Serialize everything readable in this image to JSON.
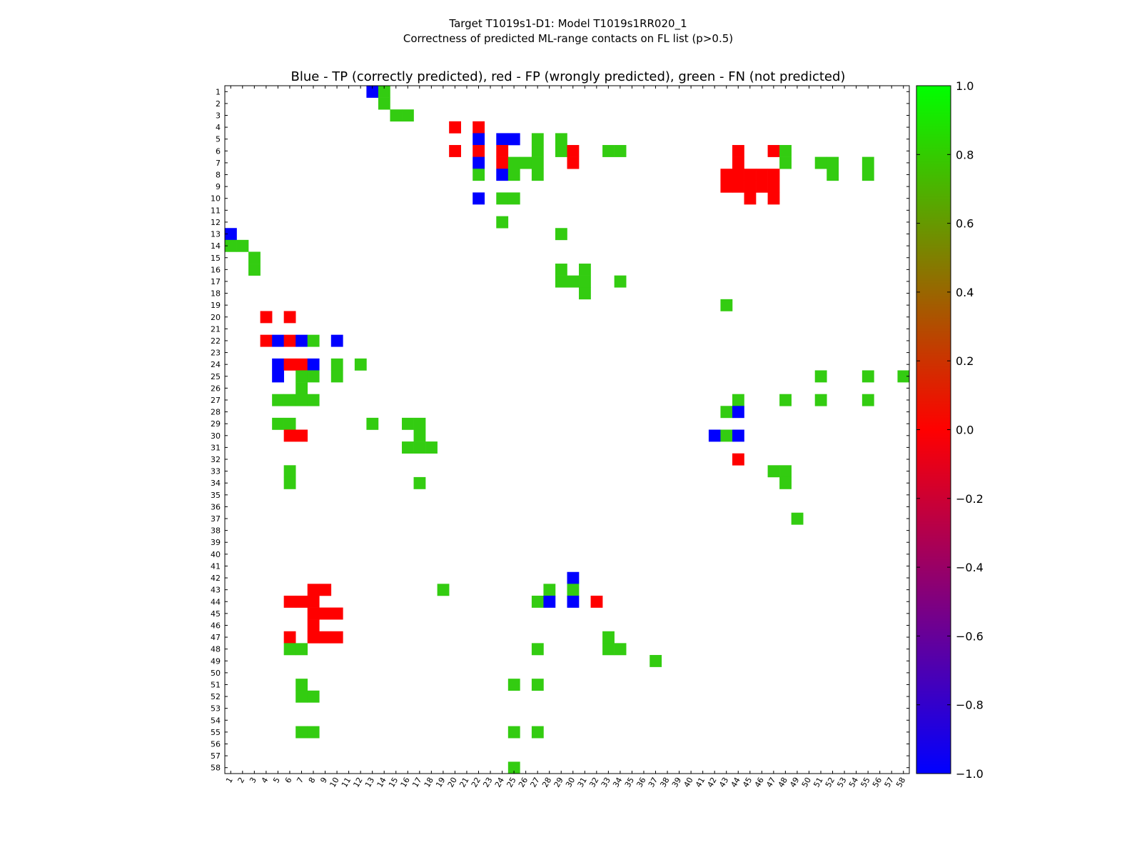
{
  "chart_data": {
    "type": "heatmap",
    "suptitle_line1": "Target T1019s1-D1: Model T1019s1RR020_1",
    "suptitle_line2": "Correctness of predicted ML-range contacts on FL list (p>0.5)",
    "title": "Blue - TP (correctly predicted), red - FP (wrongly predicted), green - FN (not predicted)",
    "n": 58,
    "value_range": [
      -1.0,
      1.0
    ],
    "colorbar_ticks": [
      {
        "value": 1.0,
        "label": "1.0"
      },
      {
        "value": 0.8,
        "label": "0.8"
      },
      {
        "value": 0.6,
        "label": "0.6"
      },
      {
        "value": 0.4,
        "label": "0.4"
      },
      {
        "value": 0.2,
        "label": "0.2"
      },
      {
        "value": 0.0,
        "label": "0.0"
      },
      {
        "value": -0.2,
        "label": "−0.2"
      },
      {
        "value": -0.4,
        "label": "−0.4"
      },
      {
        "value": -0.6,
        "label": "−0.6"
      },
      {
        "value": -0.8,
        "label": "−0.8"
      },
      {
        "value": -1.0,
        "label": "−1.0"
      }
    ],
    "colors": {
      "TP": "#0000ff",
      "FP": "#ff0000",
      "FN": "#33cc11"
    },
    "cell_values": {
      "TP": -1.0,
      "FP": 0.0,
      "FN": 0.8
    },
    "cells": [
      {
        "r": 1,
        "c": 13,
        "t": "TP"
      },
      {
        "r": 1,
        "c": 14,
        "t": "FN"
      },
      {
        "r": 2,
        "c": 14,
        "t": "FN"
      },
      {
        "r": 3,
        "c": 15,
        "t": "FN"
      },
      {
        "r": 3,
        "c": 16,
        "t": "FN"
      },
      {
        "r": 4,
        "c": 20,
        "t": "FP"
      },
      {
        "r": 4,
        "c": 22,
        "t": "FP"
      },
      {
        "r": 5,
        "c": 22,
        "t": "TP"
      },
      {
        "r": 5,
        "c": 24,
        "t": "TP"
      },
      {
        "r": 5,
        "c": 25,
        "t": "TP"
      },
      {
        "r": 5,
        "c": 27,
        "t": "FN"
      },
      {
        "r": 5,
        "c": 29,
        "t": "FN"
      },
      {
        "r": 6,
        "c": 20,
        "t": "FP"
      },
      {
        "r": 6,
        "c": 22,
        "t": "FP"
      },
      {
        "r": 6,
        "c": 24,
        "t": "FP"
      },
      {
        "r": 6,
        "c": 27,
        "t": "FN"
      },
      {
        "r": 6,
        "c": 29,
        "t": "FN"
      },
      {
        "r": 6,
        "c": 30,
        "t": "FP"
      },
      {
        "r": 6,
        "c": 33,
        "t": "FN"
      },
      {
        "r": 6,
        "c": 34,
        "t": "FN"
      },
      {
        "r": 6,
        "c": 44,
        "t": "FP"
      },
      {
        "r": 6,
        "c": 47,
        "t": "FP"
      },
      {
        "r": 6,
        "c": 48,
        "t": "FN"
      },
      {
        "r": 7,
        "c": 22,
        "t": "TP"
      },
      {
        "r": 7,
        "c": 24,
        "t": "FP"
      },
      {
        "r": 7,
        "c": 25,
        "t": "FN"
      },
      {
        "r": 7,
        "c": 26,
        "t": "FN"
      },
      {
        "r": 7,
        "c": 27,
        "t": "FN"
      },
      {
        "r": 7,
        "c": 30,
        "t": "FP"
      },
      {
        "r": 7,
        "c": 44,
        "t": "FP"
      },
      {
        "r": 7,
        "c": 48,
        "t": "FN"
      },
      {
        "r": 7,
        "c": 51,
        "t": "FN"
      },
      {
        "r": 7,
        "c": 52,
        "t": "FN"
      },
      {
        "r": 7,
        "c": 55,
        "t": "FN"
      },
      {
        "r": 8,
        "c": 22,
        "t": "FN"
      },
      {
        "r": 8,
        "c": 24,
        "t": "TP"
      },
      {
        "r": 8,
        "c": 25,
        "t": "FN"
      },
      {
        "r": 8,
        "c": 27,
        "t": "FN"
      },
      {
        "r": 8,
        "c": 43,
        "t": "FP"
      },
      {
        "r": 8,
        "c": 44,
        "t": "FP"
      },
      {
        "r": 8,
        "c": 45,
        "t": "FP"
      },
      {
        "r": 8,
        "c": 46,
        "t": "FP"
      },
      {
        "r": 8,
        "c": 47,
        "t": "FP"
      },
      {
        "r": 8,
        "c": 52,
        "t": "FN"
      },
      {
        "r": 8,
        "c": 55,
        "t": "FN"
      },
      {
        "r": 9,
        "c": 43,
        "t": "FP"
      },
      {
        "r": 9,
        "c": 44,
        "t": "FP"
      },
      {
        "r": 9,
        "c": 45,
        "t": "FP"
      },
      {
        "r": 9,
        "c": 46,
        "t": "FP"
      },
      {
        "r": 9,
        "c": 47,
        "t": "FP"
      },
      {
        "r": 10,
        "c": 22,
        "t": "TP"
      },
      {
        "r": 10,
        "c": 24,
        "t": "FN"
      },
      {
        "r": 10,
        "c": 25,
        "t": "FN"
      },
      {
        "r": 10,
        "c": 45,
        "t": "FP"
      },
      {
        "r": 10,
        "c": 47,
        "t": "FP"
      },
      {
        "r": 12,
        "c": 24,
        "t": "FN"
      },
      {
        "r": 13,
        "c": 1,
        "t": "TP"
      },
      {
        "r": 13,
        "c": 29,
        "t": "FN"
      },
      {
        "r": 14,
        "c": 1,
        "t": "FN"
      },
      {
        "r": 14,
        "c": 2,
        "t": "FN"
      },
      {
        "r": 15,
        "c": 3,
        "t": "FN"
      },
      {
        "r": 16,
        "c": 3,
        "t": "FN"
      },
      {
        "r": 16,
        "c": 29,
        "t": "FN"
      },
      {
        "r": 16,
        "c": 31,
        "t": "FN"
      },
      {
        "r": 17,
        "c": 29,
        "t": "FN"
      },
      {
        "r": 17,
        "c": 30,
        "t": "FN"
      },
      {
        "r": 17,
        "c": 31,
        "t": "FN"
      },
      {
        "r": 17,
        "c": 34,
        "t": "FN"
      },
      {
        "r": 18,
        "c": 31,
        "t": "FN"
      },
      {
        "r": 19,
        "c": 43,
        "t": "FN"
      },
      {
        "r": 20,
        "c": 4,
        "t": "FP"
      },
      {
        "r": 20,
        "c": 6,
        "t": "FP"
      },
      {
        "r": 22,
        "c": 4,
        "t": "FP"
      },
      {
        "r": 22,
        "c": 5,
        "t": "TP"
      },
      {
        "r": 22,
        "c": 6,
        "t": "FP"
      },
      {
        "r": 22,
        "c": 7,
        "t": "TP"
      },
      {
        "r": 22,
        "c": 8,
        "t": "FN"
      },
      {
        "r": 22,
        "c": 10,
        "t": "TP"
      },
      {
        "r": 24,
        "c": 5,
        "t": "TP"
      },
      {
        "r": 24,
        "c": 6,
        "t": "FP"
      },
      {
        "r": 24,
        "c": 7,
        "t": "FP"
      },
      {
        "r": 24,
        "c": 8,
        "t": "TP"
      },
      {
        "r": 24,
        "c": 10,
        "t": "FN"
      },
      {
        "r": 24,
        "c": 12,
        "t": "FN"
      },
      {
        "r": 25,
        "c": 5,
        "t": "TP"
      },
      {
        "r": 25,
        "c": 7,
        "t": "FN"
      },
      {
        "r": 25,
        "c": 8,
        "t": "FN"
      },
      {
        "r": 25,
        "c": 10,
        "t": "FN"
      },
      {
        "r": 25,
        "c": 51,
        "t": "FN"
      },
      {
        "r": 25,
        "c": 55,
        "t": "FN"
      },
      {
        "r": 25,
        "c": 58,
        "t": "FN"
      },
      {
        "r": 26,
        "c": 7,
        "t": "FN"
      },
      {
        "r": 27,
        "c": 5,
        "t": "FN"
      },
      {
        "r": 27,
        "c": 6,
        "t": "FN"
      },
      {
        "r": 27,
        "c": 7,
        "t": "FN"
      },
      {
        "r": 27,
        "c": 8,
        "t": "FN"
      },
      {
        "r": 27,
        "c": 44,
        "t": "FN"
      },
      {
        "r": 27,
        "c": 48,
        "t": "FN"
      },
      {
        "r": 27,
        "c": 51,
        "t": "FN"
      },
      {
        "r": 27,
        "c": 55,
        "t": "FN"
      },
      {
        "r": 28,
        "c": 43,
        "t": "FN"
      },
      {
        "r": 28,
        "c": 44,
        "t": "TP"
      },
      {
        "r": 29,
        "c": 5,
        "t": "FN"
      },
      {
        "r": 29,
        "c": 6,
        "t": "FN"
      },
      {
        "r": 29,
        "c": 13,
        "t": "FN"
      },
      {
        "r": 29,
        "c": 16,
        "t": "FN"
      },
      {
        "r": 29,
        "c": 17,
        "t": "FN"
      },
      {
        "r": 30,
        "c": 6,
        "t": "FP"
      },
      {
        "r": 30,
        "c": 7,
        "t": "FP"
      },
      {
        "r": 30,
        "c": 17,
        "t": "FN"
      },
      {
        "r": 30,
        "c": 42,
        "t": "TP"
      },
      {
        "r": 30,
        "c": 43,
        "t": "FN"
      },
      {
        "r": 30,
        "c": 44,
        "t": "TP"
      },
      {
        "r": 31,
        "c": 16,
        "t": "FN"
      },
      {
        "r": 31,
        "c": 17,
        "t": "FN"
      },
      {
        "r": 31,
        "c": 18,
        "t": "FN"
      },
      {
        "r": 32,
        "c": 44,
        "t": "FP"
      },
      {
        "r": 33,
        "c": 6,
        "t": "FN"
      },
      {
        "r": 33,
        "c": 47,
        "t": "FN"
      },
      {
        "r": 33,
        "c": 48,
        "t": "FN"
      },
      {
        "r": 34,
        "c": 6,
        "t": "FN"
      },
      {
        "r": 34,
        "c": 17,
        "t": "FN"
      },
      {
        "r": 34,
        "c": 48,
        "t": "FN"
      },
      {
        "r": 37,
        "c": 49,
        "t": "FN"
      },
      {
        "r": 42,
        "c": 30,
        "t": "TP"
      },
      {
        "r": 43,
        "c": 8,
        "t": "FP"
      },
      {
        "r": 43,
        "c": 9,
        "t": "FP"
      },
      {
        "r": 43,
        "c": 19,
        "t": "FN"
      },
      {
        "r": 43,
        "c": 28,
        "t": "FN"
      },
      {
        "r": 43,
        "c": 30,
        "t": "FN"
      },
      {
        "r": 44,
        "c": 6,
        "t": "FP"
      },
      {
        "r": 44,
        "c": 7,
        "t": "FP"
      },
      {
        "r": 44,
        "c": 8,
        "t": "FP"
      },
      {
        "r": 44,
        "c": 27,
        "t": "FN"
      },
      {
        "r": 44,
        "c": 28,
        "t": "TP"
      },
      {
        "r": 44,
        "c": 30,
        "t": "TP"
      },
      {
        "r": 44,
        "c": 32,
        "t": "FP"
      },
      {
        "r": 45,
        "c": 8,
        "t": "FP"
      },
      {
        "r": 45,
        "c": 9,
        "t": "FP"
      },
      {
        "r": 45,
        "c": 10,
        "t": "FP"
      },
      {
        "r": 46,
        "c": 8,
        "t": "FP"
      },
      {
        "r": 47,
        "c": 6,
        "t": "FP"
      },
      {
        "r": 47,
        "c": 8,
        "t": "FP"
      },
      {
        "r": 47,
        "c": 9,
        "t": "FP"
      },
      {
        "r": 47,
        "c": 10,
        "t": "FP"
      },
      {
        "r": 47,
        "c": 33,
        "t": "FN"
      },
      {
        "r": 48,
        "c": 6,
        "t": "FN"
      },
      {
        "r": 48,
        "c": 7,
        "t": "FN"
      },
      {
        "r": 48,
        "c": 27,
        "t": "FN"
      },
      {
        "r": 48,
        "c": 33,
        "t": "FN"
      },
      {
        "r": 48,
        "c": 34,
        "t": "FN"
      },
      {
        "r": 49,
        "c": 37,
        "t": "FN"
      },
      {
        "r": 51,
        "c": 7,
        "t": "FN"
      },
      {
        "r": 51,
        "c": 25,
        "t": "FN"
      },
      {
        "r": 51,
        "c": 27,
        "t": "FN"
      },
      {
        "r": 52,
        "c": 7,
        "t": "FN"
      },
      {
        "r": 52,
        "c": 8,
        "t": "FN"
      },
      {
        "r": 55,
        "c": 7,
        "t": "FN"
      },
      {
        "r": 55,
        "c": 8,
        "t": "FN"
      },
      {
        "r": 55,
        "c": 25,
        "t": "FN"
      },
      {
        "r": 55,
        "c": 27,
        "t": "FN"
      },
      {
        "r": 58,
        "c": 25,
        "t": "FN"
      }
    ]
  }
}
